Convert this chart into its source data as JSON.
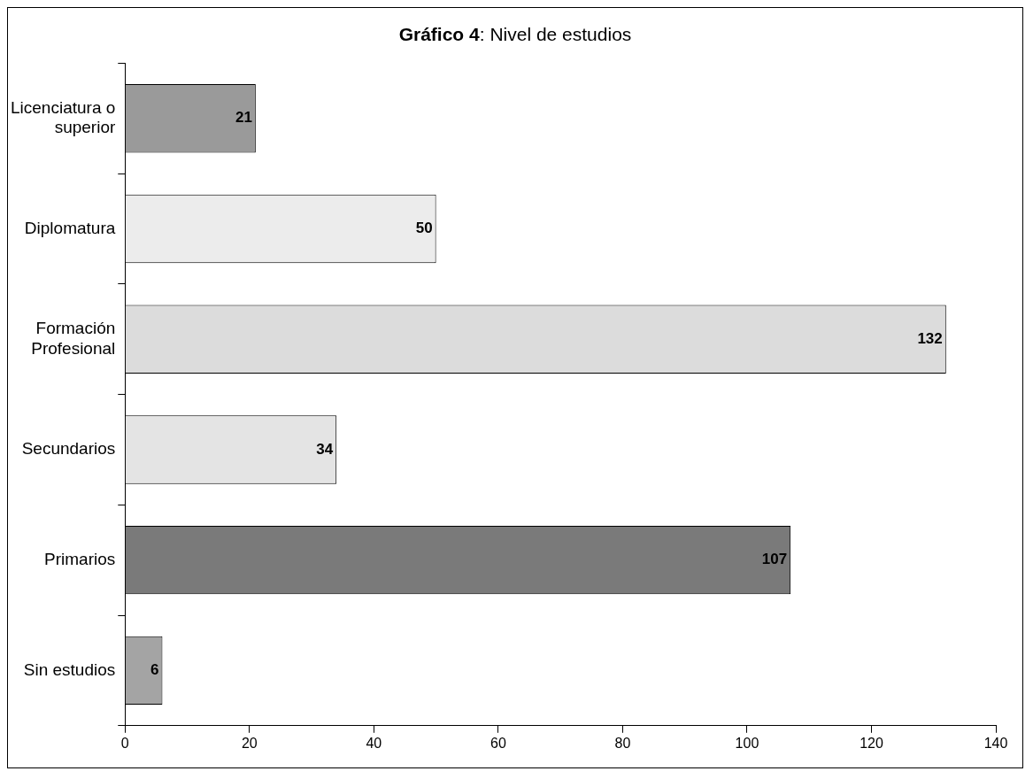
{
  "chart_data": {
    "type": "bar",
    "orientation": "horizontal",
    "title": "Gráfico 4: Nivel de estudios",
    "categories": [
      "Licenciatura o superior",
      "Diplomatura",
      "Formación Profesional",
      "Secundarios",
      "Primarios",
      "Sin estudios"
    ],
    "values": [
      21,
      50,
      132,
      34,
      107,
      6
    ],
    "colors": [
      "#9a9a9a",
      "#ececec",
      "#dcdcdc",
      "#e4e4e4",
      "#7a7a7a",
      "#a4a4a4"
    ],
    "xlim": [
      0,
      140
    ],
    "xticks": [
      0,
      20,
      40,
      60,
      80,
      100,
      120,
      140
    ],
    "data_labels": true,
    "grid": false,
    "legend": false
  }
}
